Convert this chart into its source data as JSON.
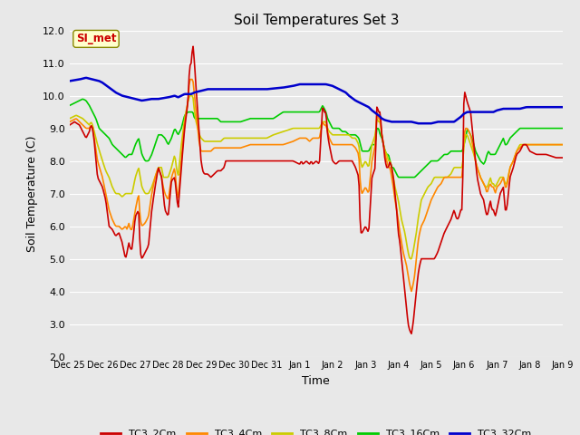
{
  "title": "Soil Temperatures Set 3",
  "xlabel": "Time",
  "ylabel": "Soil Temperature (C)",
  "ylim": [
    2.0,
    12.0
  ],
  "yticks": [
    2.0,
    3.0,
    4.0,
    5.0,
    6.0,
    7.0,
    8.0,
    9.0,
    10.0,
    11.0,
    12.0
  ],
  "bg_color": "#e8e8e8",
  "annotation_text": "SI_met",
  "annotation_color": "#cc0000",
  "annotation_bg": "#ffffcc",
  "x_labels": [
    "Dec 25",
    "Dec 26",
    "Dec 27",
    "Dec 28",
    "Dec 29",
    "Dec 30",
    "Dec 31",
    "Jan 1",
    "Jan 2",
    "Jan 3",
    "Jan 4",
    "Jan 5",
    "Jan 6",
    "Jan 7",
    "Jan 8",
    "Jan 9"
  ],
  "series": {
    "TC3_2Cm": {
      "color": "#cc0000",
      "lw": 1.2
    },
    "TC3_4Cm": {
      "color": "#ff8800",
      "lw": 1.2
    },
    "TC3_8Cm": {
      "color": "#cccc00",
      "lw": 1.2
    },
    "TC3_16Cm": {
      "color": "#00cc00",
      "lw": 1.2
    },
    "TC3_32Cm": {
      "color": "#0000cc",
      "lw": 1.8
    }
  },
  "legend_colors": {
    "TC3_2Cm": "#cc0000",
    "TC3_4Cm": "#ff8800",
    "TC3_8Cm": "#cccc00",
    "TC3_16Cm": "#00cc00",
    "TC3_32Cm": "#0000cc"
  }
}
